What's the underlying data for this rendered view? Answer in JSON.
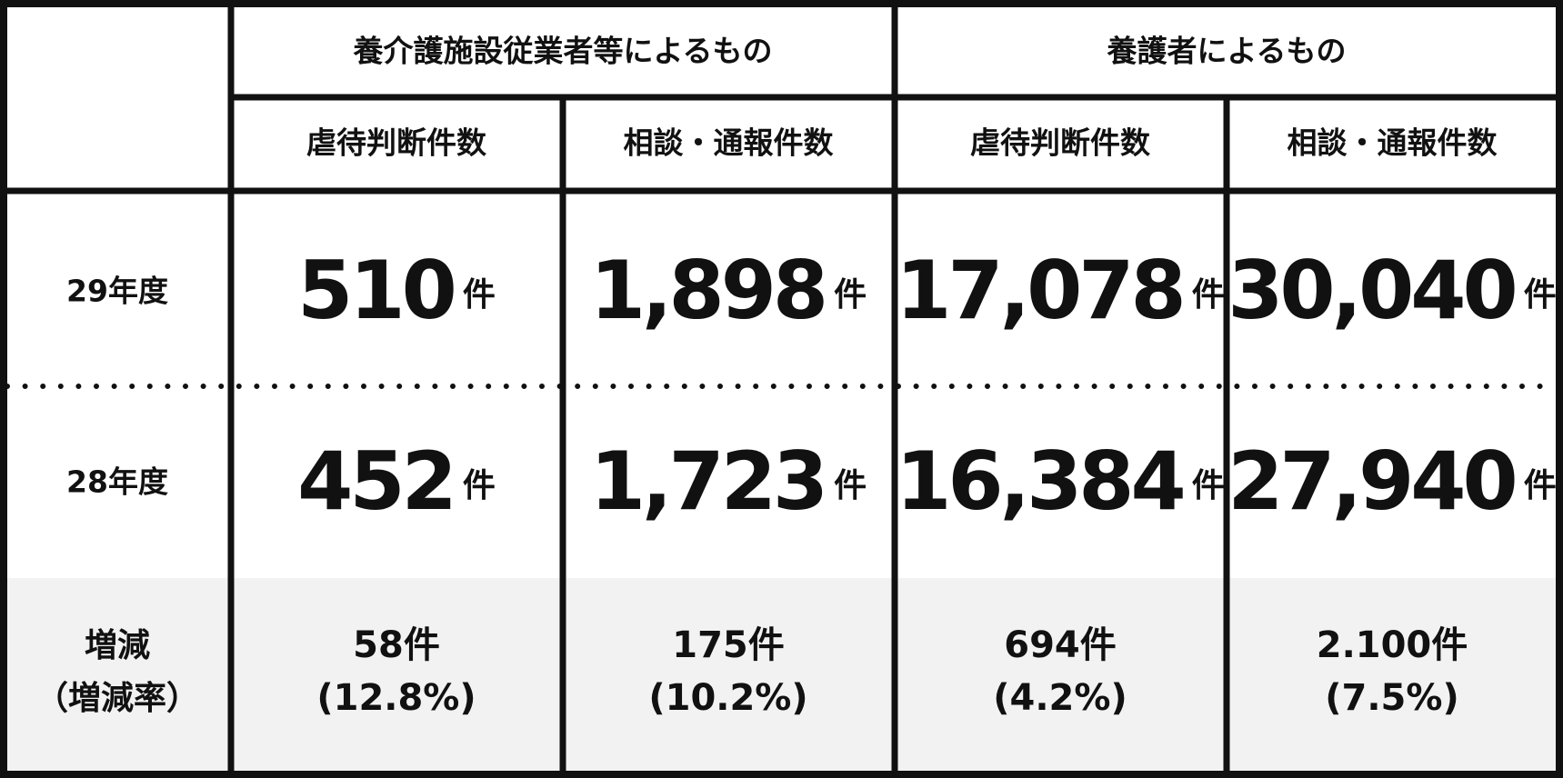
{
  "table": {
    "group_headers": [
      "養介護施設従業者等によるもの",
      "養護者によるもの"
    ],
    "sub_headers": [
      "虐待判断件数",
      "相談・通報件数",
      "虐待判断件数",
      "相談・通報件数"
    ],
    "rows": [
      {
        "label": "29年度",
        "cells": [
          {
            "number": "510",
            "unit": "件"
          },
          {
            "number": "1,898",
            "unit": "件"
          },
          {
            "number": "17,078",
            "unit": "件"
          },
          {
            "number": "30,040",
            "unit": "件"
          }
        ]
      },
      {
        "label": "28年度",
        "cells": [
          {
            "number": "452",
            "unit": "件"
          },
          {
            "number": "1,723",
            "unit": "件"
          },
          {
            "number": "16,384",
            "unit": "件"
          },
          {
            "number": "27,940",
            "unit": "件"
          }
        ]
      }
    ],
    "change_row": {
      "label_lines": [
        "増減",
        "（増減率）"
      ],
      "cells": [
        {
          "count": "58件",
          "rate": "(12.8%)"
        },
        {
          "count": "175件",
          "rate": "(10.2%)"
        },
        {
          "count": "694件",
          "rate": "(4.2%)"
        },
        {
          "count": "2.100件",
          "rate": "(7.5%)"
        }
      ]
    }
  }
}
